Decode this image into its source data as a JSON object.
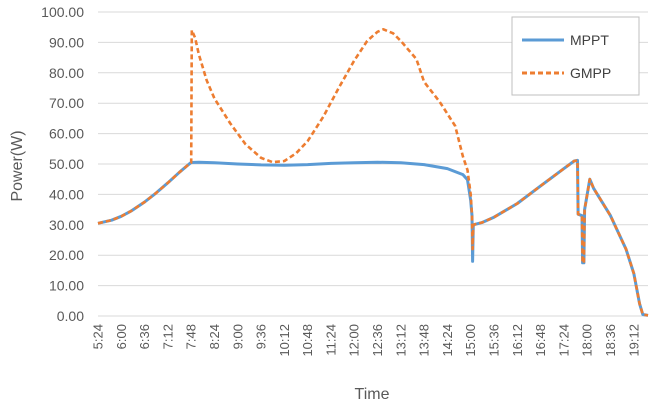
{
  "chart_data": {
    "type": "line",
    "title": "",
    "xlabel": "Time",
    "ylabel": "Power(W)",
    "ylim": [
      0,
      100
    ],
    "y_ticks": [
      "0.00",
      "10.00",
      "20.00",
      "30.00",
      "40.00",
      "50.00",
      "60.00",
      "70.00",
      "80.00",
      "90.00",
      "100.00"
    ],
    "x_ticks": [
      "5:24",
      "6:00",
      "6:36",
      "7:12",
      "7:48",
      "8:24",
      "9:00",
      "9:36",
      "10:12",
      "10:48",
      "11:24",
      "12:00",
      "12:36",
      "13:12",
      "13:48",
      "14:24",
      "15:00",
      "15:36",
      "16:12",
      "16:48",
      "17:24",
      "18:00",
      "18:36",
      "19:12"
    ],
    "xlim": [
      "5:24",
      "19:34"
    ],
    "grid": "horizontal",
    "legend_position": "top-right",
    "series": [
      {
        "name": "MPPT",
        "color": "#5b9bd5",
        "style": "solid",
        "points": [
          [
            "5:24",
            30.5
          ],
          [
            "5:45",
            31.5
          ],
          [
            "6:00",
            32.8
          ],
          [
            "6:15",
            34.5
          ],
          [
            "6:36",
            37.5
          ],
          [
            "6:54",
            40.5
          ],
          [
            "7:12",
            43.8
          ],
          [
            "7:30",
            47.3
          ],
          [
            "7:45",
            50.0
          ],
          [
            "7:48",
            50.5
          ],
          [
            "8:00",
            50.6
          ],
          [
            "8:24",
            50.4
          ],
          [
            "9:00",
            50.0
          ],
          [
            "9:36",
            49.7
          ],
          [
            "10:12",
            49.6
          ],
          [
            "10:48",
            49.8
          ],
          [
            "11:24",
            50.2
          ],
          [
            "12:00",
            50.4
          ],
          [
            "12:36",
            50.6
          ],
          [
            "13:12",
            50.4
          ],
          [
            "13:48",
            49.8
          ],
          [
            "14:24",
            48.5
          ],
          [
            "14:48",
            46.5
          ],
          [
            "14:55",
            44.8
          ],
          [
            "15:00",
            38.0
          ],
          [
            "15:02",
            33.0
          ],
          [
            "15:03",
            18.0
          ],
          [
            "15:04",
            30.0
          ],
          [
            "15:18",
            30.8
          ],
          [
            "15:36",
            32.5
          ],
          [
            "16:12",
            37.0
          ],
          [
            "16:48",
            42.8
          ],
          [
            "17:24",
            48.5
          ],
          [
            "17:40",
            51.0
          ],
          [
            "17:45",
            51.2
          ],
          [
            "17:46",
            33.5
          ],
          [
            "17:52",
            33.0
          ],
          [
            "17:53",
            17.5
          ],
          [
            "17:55",
            17.5
          ],
          [
            "17:56",
            35.0
          ],
          [
            "18:00",
            40.0
          ],
          [
            "18:04",
            45.0
          ],
          [
            "18:10",
            42.0
          ],
          [
            "18:36",
            33.0
          ],
          [
            "19:00",
            22.0
          ],
          [
            "19:12",
            14.0
          ],
          [
            "19:21",
            4.0
          ],
          [
            "19:26",
            0.5
          ],
          [
            "19:34",
            0.2
          ]
        ]
      },
      {
        "name": "GMPP",
        "color": "#ed7d31",
        "style": "dashed",
        "points": [
          [
            "5:24",
            30.5
          ],
          [
            "5:45",
            31.5
          ],
          [
            "6:00",
            32.8
          ],
          [
            "6:15",
            34.5
          ],
          [
            "6:36",
            37.5
          ],
          [
            "6:54",
            40.5
          ],
          [
            "7:12",
            43.8
          ],
          [
            "7:30",
            47.3
          ],
          [
            "7:45",
            50.0
          ],
          [
            "7:48",
            50.5
          ],
          [
            "7:49",
            94.0
          ],
          [
            "7:54",
            91.5
          ],
          [
            "8:00",
            86.0
          ],
          [
            "8:12",
            77.5
          ],
          [
            "8:24",
            71.5
          ],
          [
            "8:48",
            63.5
          ],
          [
            "9:12",
            56.5
          ],
          [
            "9:36",
            52.0
          ],
          [
            "9:54",
            50.6
          ],
          [
            "10:12",
            51.0
          ],
          [
            "10:30",
            53.5
          ],
          [
            "10:48",
            57.5
          ],
          [
            "11:12",
            65.5
          ],
          [
            "11:36",
            75.0
          ],
          [
            "12:00",
            84.0
          ],
          [
            "12:20",
            90.5
          ],
          [
            "12:36",
            93.5
          ],
          [
            "12:45",
            94.3
          ],
          [
            "13:00",
            93.0
          ],
          [
            "13:12",
            90.5
          ],
          [
            "13:36",
            84.5
          ],
          [
            "13:48",
            77.0
          ],
          [
            "14:12",
            70.5
          ],
          [
            "14:36",
            62.5
          ],
          [
            "14:48",
            52.5
          ],
          [
            "14:55",
            48.0
          ],
          [
            "15:00",
            40.0
          ],
          [
            "15:02",
            33.0
          ],
          [
            "15:03",
            22.0
          ],
          [
            "15:04",
            30.0
          ],
          [
            "15:18",
            30.8
          ],
          [
            "15:36",
            32.5
          ],
          [
            "16:12",
            37.0
          ],
          [
            "16:48",
            42.8
          ],
          [
            "17:24",
            48.5
          ],
          [
            "17:40",
            51.0
          ],
          [
            "17:45",
            51.2
          ],
          [
            "17:46",
            33.5
          ],
          [
            "17:52",
            33.0
          ],
          [
            "17:53",
            17.5
          ],
          [
            "17:55",
            17.5
          ],
          [
            "17:56",
            35.0
          ],
          [
            "18:00",
            40.0
          ],
          [
            "18:04",
            45.0
          ],
          [
            "18:10",
            42.0
          ],
          [
            "18:36",
            33.0
          ],
          [
            "19:00",
            22.0
          ],
          [
            "19:12",
            14.0
          ],
          [
            "19:21",
            4.0
          ],
          [
            "19:26",
            0.5
          ],
          [
            "19:34",
            0.2
          ]
        ]
      }
    ]
  }
}
